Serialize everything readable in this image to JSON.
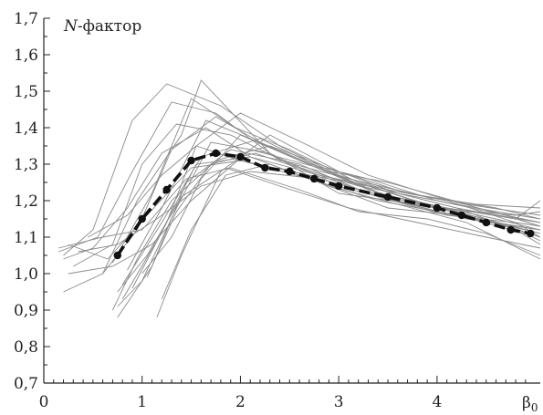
{
  "chart_data": {
    "type": "line",
    "ylabel_italic": "N",
    "ylabel_rest": "-фактор",
    "xlabel": "β",
    "xlabel_sub": "0",
    "xlim": [
      0,
      5.05
    ],
    "ylim": [
      0.7,
      1.7
    ],
    "x_ticks": [
      0,
      1,
      2,
      3,
      4
    ],
    "x_tick_labels": [
      "0",
      "1",
      "2",
      "3",
      "4"
    ],
    "y_ticks": [
      0.7,
      0.8,
      0.9,
      1.0,
      1.1,
      1.2,
      1.3,
      1.4,
      1.5,
      1.6,
      1.7
    ],
    "y_tick_labels": [
      "0,7",
      "0,8",
      "0,9",
      "1,0",
      "1,1",
      "1,2",
      "1,3",
      "1,4",
      "1,5",
      "1,6",
      "1,7"
    ],
    "mean_series": {
      "x": [
        0.75,
        1.0,
        1.25,
        1.5,
        1.75,
        2.0,
        2.25,
        2.5,
        2.75,
        3.0,
        3.5,
        4.0,
        4.25,
        4.5,
        4.75,
        4.95
      ],
      "y": [
        1.05,
        1.15,
        1.23,
        1.31,
        1.33,
        1.32,
        1.29,
        1.28,
        1.26,
        1.24,
        1.21,
        1.18,
        1.16,
        1.14,
        1.12,
        1.11
      ]
    },
    "series": [
      {
        "x": [
          0.2,
          0.5,
          0.9,
          1.25,
          1.8,
          2.4,
          3.0,
          3.6,
          4.2,
          4.8,
          5.05
        ],
        "y": [
          1.05,
          1.12,
          1.42,
          1.52,
          1.46,
          1.35,
          1.27,
          1.22,
          1.18,
          1.15,
          1.13
        ]
      },
      {
        "x": [
          0.3,
          0.7,
          1.0,
          1.35,
          1.9,
          2.5,
          3.2,
          4.0,
          4.7,
          5.05
        ],
        "y": [
          1.02,
          1.08,
          1.3,
          1.41,
          1.38,
          1.3,
          1.24,
          1.2,
          1.16,
          1.13
        ]
      },
      {
        "x": [
          0.2,
          0.6,
          0.95,
          1.4,
          1.6,
          2.3,
          3.0,
          3.8,
          4.5,
          5.05
        ],
        "y": [
          0.95,
          1.0,
          1.2,
          1.38,
          1.53,
          1.33,
          1.22,
          1.19,
          1.15,
          1.1
        ]
      },
      {
        "x": [
          0.75,
          1.1,
          1.45,
          1.9,
          2.6,
          3.3,
          4.0,
          4.6,
          5.05
        ],
        "y": [
          0.88,
          1.02,
          1.25,
          1.34,
          1.3,
          1.22,
          1.17,
          1.14,
          1.12
        ]
      },
      {
        "x": [
          0.8,
          1.2,
          1.6,
          2.2,
          2.9,
          3.6,
          4.3,
          5.05
        ],
        "y": [
          0.97,
          1.14,
          1.32,
          1.37,
          1.28,
          1.2,
          1.15,
          1.12
        ]
      },
      {
        "x": [
          0.15,
          0.55,
          0.9,
          1.3,
          1.75,
          2.4,
          3.1,
          3.9,
          4.6,
          5.05
        ],
        "y": [
          1.06,
          1.1,
          1.28,
          1.47,
          1.44,
          1.31,
          1.26,
          1.21,
          1.18,
          1.15
        ]
      },
      {
        "x": [
          0.25,
          0.65,
          1.05,
          1.5,
          2.0,
          2.7,
          3.4,
          4.2,
          4.9,
          5.05
        ],
        "y": [
          1.08,
          1.04,
          1.16,
          1.29,
          1.31,
          1.26,
          1.2,
          1.16,
          1.12,
          1.11
        ]
      },
      {
        "x": [
          0.75,
          1.0,
          1.35,
          1.7,
          2.3,
          3.0,
          3.7,
          4.4,
          5.05
        ],
        "y": [
          0.91,
          0.98,
          1.18,
          1.36,
          1.33,
          1.24,
          1.19,
          1.17,
          1.14
        ]
      },
      {
        "x": [
          0.6,
          0.95,
          1.3,
          1.75,
          2.2,
          2.9,
          3.5,
          4.3,
          5.05
        ],
        "y": [
          1.0,
          1.12,
          1.34,
          1.43,
          1.36,
          1.28,
          1.25,
          1.19,
          1.16
        ]
      },
      {
        "x": [
          0.2,
          0.5,
          0.85,
          1.2,
          1.65,
          2.1,
          2.8,
          3.5,
          4.1,
          4.8,
          5.05
        ],
        "y": [
          1.04,
          1.07,
          1.18,
          1.33,
          1.4,
          1.32,
          1.27,
          1.23,
          1.2,
          1.14,
          1.1
        ]
      },
      {
        "x": [
          1.15,
          1.4,
          1.8,
          2.3,
          3.0,
          3.6,
          4.2,
          4.8,
          5.05
        ],
        "y": [
          0.88,
          1.05,
          1.28,
          1.38,
          1.28,
          1.22,
          1.18,
          1.12,
          1.08
        ]
      },
      {
        "x": [
          0.9,
          1.25,
          1.55,
          2.0,
          2.7,
          3.3,
          4.0,
          4.7,
          5.05
        ],
        "y": [
          0.96,
          1.14,
          1.35,
          1.44,
          1.35,
          1.27,
          1.21,
          1.16,
          1.14
        ]
      },
      {
        "x": [
          0.7,
          1.1,
          1.5,
          1.95,
          2.5,
          3.2,
          3.9,
          4.6,
          5.05
        ],
        "y": [
          1.03,
          1.22,
          1.48,
          1.4,
          1.34,
          1.25,
          1.19,
          1.15,
          1.12
        ]
      },
      {
        "x": [
          0.15,
          0.6,
          1.0,
          1.45,
          1.9,
          2.6,
          3.2,
          3.9,
          4.5,
          5.05
        ],
        "y": [
          1.07,
          1.1,
          1.12,
          1.26,
          1.29,
          1.23,
          1.17,
          1.15,
          1.11,
          1.05
        ]
      },
      {
        "x": [
          0.8,
          1.15,
          1.55,
          2.1,
          2.8,
          3.5,
          4.2,
          4.9,
          5.05
        ],
        "y": [
          0.93,
          1.09,
          1.3,
          1.32,
          1.25,
          1.18,
          1.16,
          1.11,
          1.09
        ]
      },
      {
        "x": [
          1.0,
          1.3,
          1.6,
          2.0,
          2.6,
          3.3,
          4.0,
          4.7,
          5.05
        ],
        "y": [
          1.0,
          1.1,
          1.26,
          1.38,
          1.31,
          1.23,
          1.18,
          1.13,
          1.1
        ]
      },
      {
        "x": [
          0.45,
          0.85,
          1.2,
          1.55,
          2.0,
          2.7,
          3.3,
          4.0,
          4.8,
          5.05
        ],
        "y": [
          1.1,
          1.16,
          1.27,
          1.35,
          1.31,
          1.27,
          1.24,
          1.18,
          1.16,
          1.17
        ]
      },
      {
        "x": [
          0.75,
          1.05,
          1.4,
          1.85,
          2.4,
          3.1,
          3.8,
          4.5,
          5.05
        ],
        "y": [
          0.95,
          1.05,
          1.21,
          1.29,
          1.24,
          1.18,
          1.14,
          1.1,
          1.07
        ]
      },
      {
        "x": [
          0.25,
          0.7,
          1.1,
          1.5,
          2.1,
          2.8,
          3.4,
          4.1,
          4.8,
          5.05
        ],
        "y": [
          1.0,
          1.02,
          1.08,
          1.2,
          1.34,
          1.29,
          1.22,
          1.18,
          1.15,
          1.2
        ]
      },
      {
        "x": [
          1.05,
          1.35,
          1.7,
          2.15,
          2.8,
          3.4,
          4.1,
          4.8,
          5.05
        ],
        "y": [
          0.99,
          1.17,
          1.3,
          1.33,
          1.27,
          1.21,
          1.16,
          1.14,
          1.13
        ]
      },
      {
        "x": [
          0.85,
          1.2,
          1.65,
          2.1,
          2.7,
          3.3,
          4.0,
          4.6,
          5.05
        ],
        "y": [
          1.01,
          1.18,
          1.42,
          1.37,
          1.3,
          1.26,
          1.2,
          1.17,
          1.15
        ]
      },
      {
        "x": [
          0.35,
          0.75,
          1.15,
          1.6,
          2.1,
          2.8,
          3.5,
          4.2,
          5.05
        ],
        "y": [
          1.06,
          1.08,
          1.15,
          1.24,
          1.28,
          1.26,
          1.21,
          1.17,
          1.11
        ]
      },
      {
        "x": [
          1.2,
          1.5,
          1.85,
          2.3,
          2.9,
          3.6,
          4.3,
          5.05
        ],
        "y": [
          0.93,
          1.12,
          1.27,
          1.3,
          1.24,
          1.19,
          1.14,
          1.04
        ]
      },
      {
        "x": [
          0.7,
          0.95,
          1.3,
          1.75,
          2.3,
          3.0,
          3.7,
          4.4,
          5.05
        ],
        "y": [
          0.9,
          1.04,
          1.2,
          1.31,
          1.35,
          1.28,
          1.22,
          1.19,
          1.18
        ]
      }
    ]
  }
}
